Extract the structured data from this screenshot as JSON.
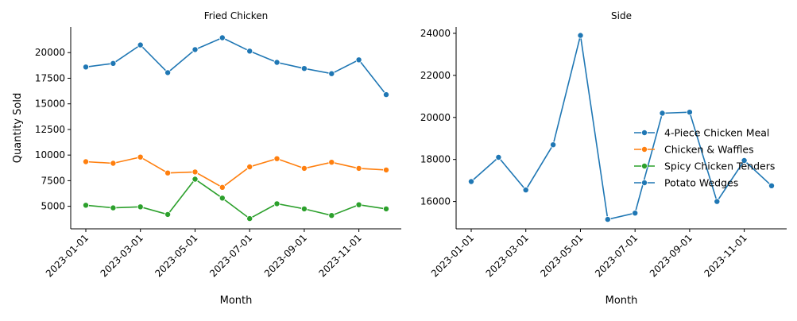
{
  "chart_data": [
    {
      "type": "line",
      "title": "Fried Chicken",
      "xlabel": "Month",
      "ylabel": "Quantity Sold",
      "x": [
        "2023-01-01",
        "2023-02-01",
        "2023-03-01",
        "2023-04-01",
        "2023-05-01",
        "2023-06-01",
        "2023-07-01",
        "2023-08-01",
        "2023-09-01",
        "2023-10-01",
        "2023-11-01",
        "2023-12-01"
      ],
      "xticks": [
        "2023-01-01",
        "2023-03-01",
        "2023-05-01",
        "2023-07-01",
        "2023-09-01",
        "2023-11-01"
      ],
      "yticks": [
        5000,
        7500,
        10000,
        12500,
        15000,
        17500,
        20000
      ],
      "ylim": [
        2800,
        22500
      ],
      "grid": false,
      "series": [
        {
          "name": "4-Piece Chicken Meal",
          "color": "#1f77b4",
          "values": [
            18600,
            18950,
            20750,
            18050,
            20300,
            21450,
            20150,
            19050,
            18450,
            17950,
            19300,
            15900
          ]
        },
        {
          "name": "Chicken & Waffles",
          "color": "#ff7f0e",
          "values": [
            9350,
            9200,
            9800,
            8250,
            8350,
            6850,
            8850,
            9650,
            8700,
            9300,
            8700,
            8550
          ]
        },
        {
          "name": "Spicy Chicken Tenders",
          "color": "#2ca02c",
          "values": [
            5100,
            4850,
            4950,
            4200,
            7650,
            5800,
            3800,
            5250,
            4750,
            4100,
            5150,
            4750
          ]
        }
      ]
    },
    {
      "type": "line",
      "title": "Side",
      "xlabel": "Month",
      "ylabel": "",
      "x": [
        "2023-01-01",
        "2023-02-01",
        "2023-03-01",
        "2023-04-01",
        "2023-05-01",
        "2023-06-01",
        "2023-07-01",
        "2023-08-01",
        "2023-09-01",
        "2023-10-01",
        "2023-11-01",
        "2023-12-01"
      ],
      "xticks": [
        "2023-01-01",
        "2023-03-01",
        "2023-05-01",
        "2023-07-01",
        "2023-09-01",
        "2023-11-01"
      ],
      "yticks": [
        16000,
        18000,
        20000,
        22000,
        24000
      ],
      "ylim": [
        14700,
        24300
      ],
      "grid": false,
      "series": [
        {
          "name": "Potato Wedges",
          "color": "#1f77b4",
          "values": [
            16950,
            18100,
            16550,
            18700,
            23900,
            15150,
            15450,
            20200,
            20250,
            16000,
            17950,
            16750
          ]
        }
      ]
    }
  ],
  "legend": {
    "placement": "right",
    "entries": [
      {
        "label": "4-Piece Chicken Meal",
        "color": "#1f77b4"
      },
      {
        "label": "Chicken & Waffles",
        "color": "#ff7f0e"
      },
      {
        "label": "Spicy Chicken Tenders",
        "color": "#2ca02c"
      },
      {
        "label": "Potato Wedges",
        "color": "#1f77b4"
      }
    ]
  }
}
